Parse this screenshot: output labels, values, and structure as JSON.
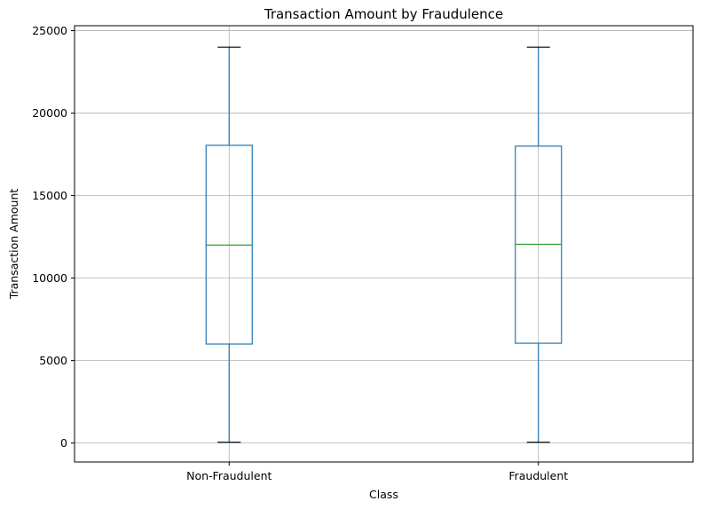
{
  "chart_data": {
    "type": "box",
    "title": "Transaction Amount by Fraudulence",
    "xlabel": "Class",
    "ylabel": "Transaction Amount",
    "categories": [
      "Non-Fraudulent",
      "Fraudulent"
    ],
    "boxes": [
      {
        "category": "Non-Fraudulent",
        "whisker_low": 50,
        "q1": 6000,
        "median": 12000,
        "q3": 18050,
        "whisker_high": 24000
      },
      {
        "category": "Fraudulent",
        "whisker_low": 50,
        "q1": 6050,
        "median": 12050,
        "q3": 18000,
        "whisker_high": 24000
      }
    ],
    "ylim": [
      -1150,
      25300
    ],
    "yticks": [
      0,
      5000,
      10000,
      15000,
      20000,
      25000
    ],
    "ytick_labels": [
      "0",
      "5000",
      "10000",
      "15000",
      "20000",
      "25000"
    ],
    "grid": true,
    "colors": {
      "box": "#1f77b4",
      "median": "#2ca02c",
      "whisker_cap": "#000000",
      "grid": "#b0b0b0"
    }
  }
}
